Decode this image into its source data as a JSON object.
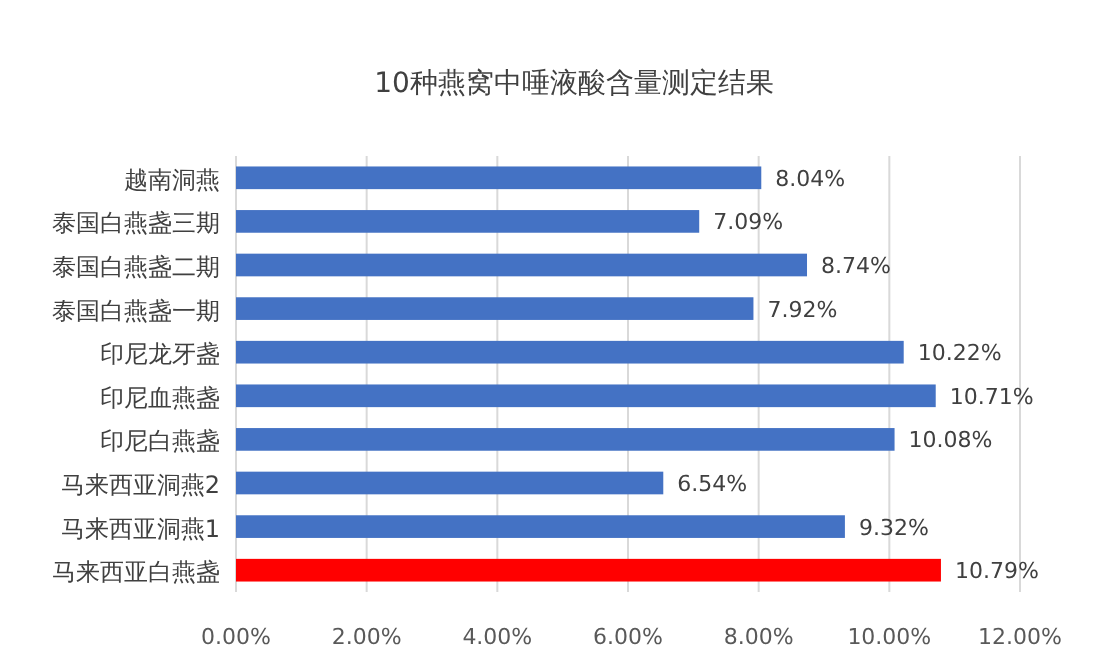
{
  "chart_data": {
    "type": "bar",
    "orientation": "horizontal",
    "title": "10种燕窝中唾液酸含量测定结果",
    "categories": [
      "越南洞燕",
      "泰国白燕盏三期",
      "泰国白燕盏二期",
      "泰国白燕盏一期",
      "印尼龙牙盏",
      "印尼血燕盏",
      "印尼白燕盏",
      "马来西亚洞燕2",
      "马来西亚洞燕1",
      "马来西亚白燕盏"
    ],
    "values": [
      8.04,
      7.09,
      8.74,
      7.92,
      10.22,
      10.71,
      10.08,
      6.54,
      9.32,
      10.79
    ],
    "value_labels": [
      "8.04%",
      "7.09%",
      "8.74%",
      "7.92%",
      "10.22%",
      "10.71%",
      "10.08%",
      "6.54%",
      "9.32%",
      "10.79%"
    ],
    "colors": [
      "#4472c4",
      "#4472c4",
      "#4472c4",
      "#4472c4",
      "#4472c4",
      "#4472c4",
      "#4472c4",
      "#4472c4",
      "#4472c4",
      "#ff0000"
    ],
    "xlim": [
      0,
      12
    ],
    "xticks": [
      {
        "value": 0,
        "label": "0.00%"
      },
      {
        "value": 2,
        "label": "2.00%"
      },
      {
        "value": 4,
        "label": "4.00%"
      },
      {
        "value": 6,
        "label": "6.00%"
      },
      {
        "value": 8,
        "label": "8.00%"
      },
      {
        "value": 10,
        "label": "10.00%"
      },
      {
        "value": 12,
        "label": "12.00%"
      }
    ],
    "grid": "x"
  }
}
